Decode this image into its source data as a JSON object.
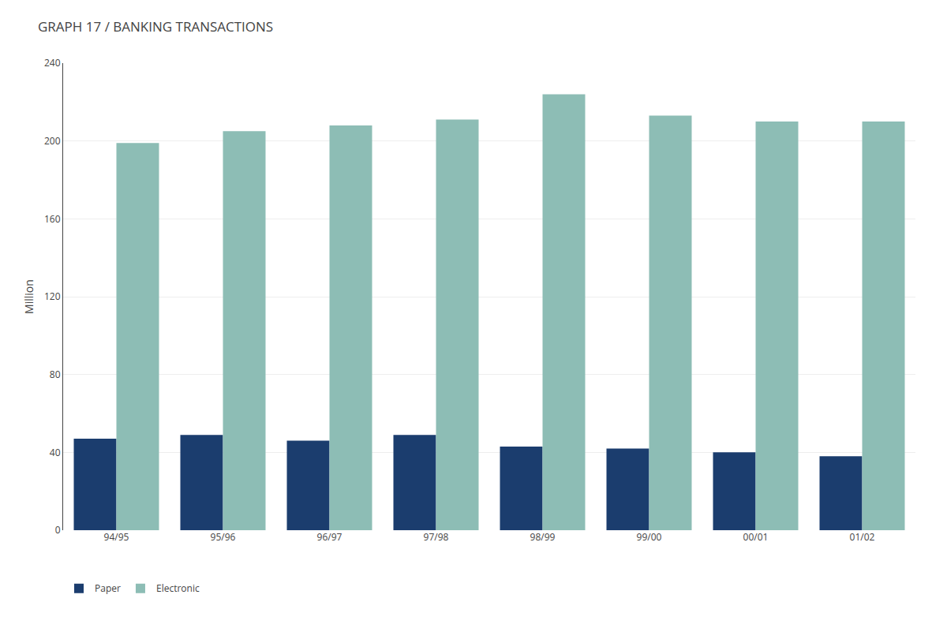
{
  "chart_data": {
    "type": "bar",
    "title": "GRAPH 17 / BANKING TRANSACTIONS",
    "ylabel": "Million",
    "categories": [
      "94/95",
      "95/96",
      "96/97",
      "97/98",
      "98/99",
      "99/00",
      "00/01",
      "01/02"
    ],
    "series": [
      {
        "name": "Paper",
        "color": "#1b3d6e",
        "values": [
          47,
          49,
          46,
          49,
          43,
          42,
          40,
          38
        ]
      },
      {
        "name": "Electronic",
        "color": "#8dbdb5",
        "values": [
          199,
          205,
          208,
          211,
          224,
          213,
          210,
          210
        ]
      }
    ],
    "ylim": [
      0,
      240
    ],
    "yticks": [
      0,
      40,
      80,
      120,
      160,
      200,
      240
    ],
    "grid": true,
    "legend": "lower left"
  }
}
